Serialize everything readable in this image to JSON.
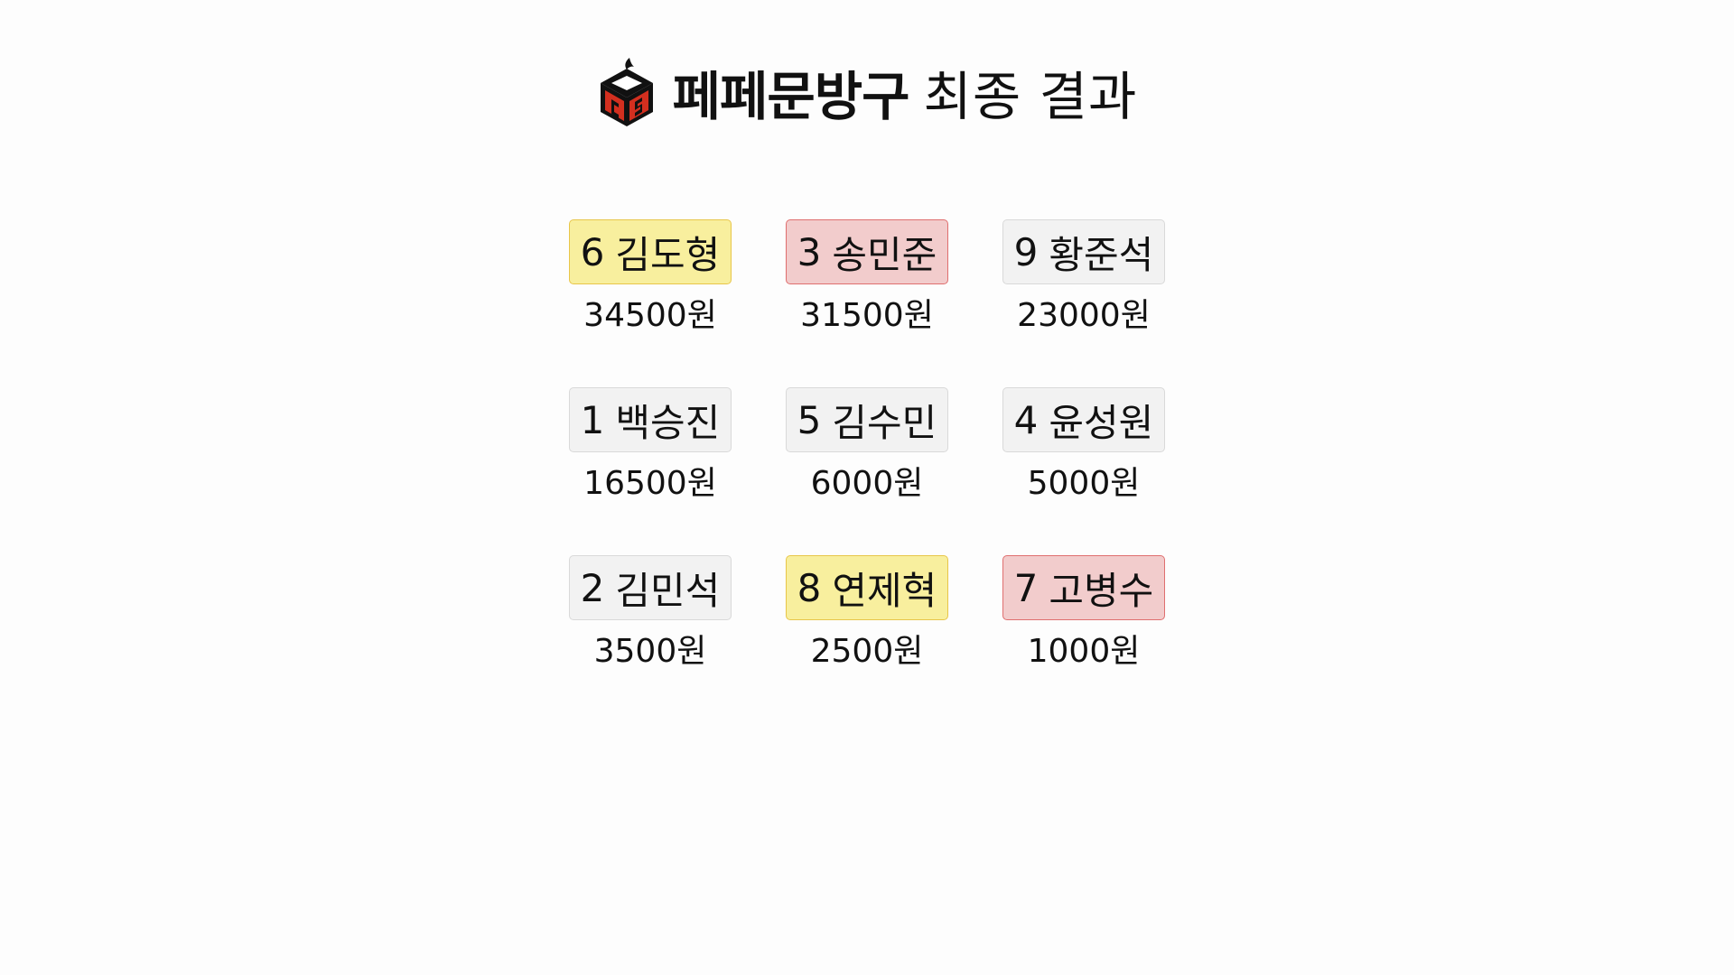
{
  "page": {
    "title_brand": "페페문방구",
    "title_rest": "최종 결과",
    "logo": "cube-logo-icon"
  },
  "colors": {
    "yellow_bg": "#f8ef9e",
    "yellow_border": "#e8c64a",
    "red_bg": "#f2cccc",
    "red_border": "#df6f6f",
    "neutral_bg": "#f2f2f2",
    "neutral_border": "#d9d9d9"
  },
  "results": [
    {
      "number": "6",
      "name": "김도형",
      "amount": "34500원",
      "highlight": "yellow"
    },
    {
      "number": "3",
      "name": "송민준",
      "amount": "31500원",
      "highlight": "red"
    },
    {
      "number": "9",
      "name": "황준석",
      "amount": "23000원",
      "highlight": "none"
    },
    {
      "number": "1",
      "name": "백승진",
      "amount": "16500원",
      "highlight": "none"
    },
    {
      "number": "5",
      "name": "김수민",
      "amount": "6000원",
      "highlight": "none"
    },
    {
      "number": "4",
      "name": "윤성원",
      "amount": "5000원",
      "highlight": "none"
    },
    {
      "number": "2",
      "name": "김민석",
      "amount": "3500원",
      "highlight": "none"
    },
    {
      "number": "8",
      "name": "연제혁",
      "amount": "2500원",
      "highlight": "yellow"
    },
    {
      "number": "7",
      "name": "고병수",
      "amount": "1000원",
      "highlight": "red"
    }
  ]
}
